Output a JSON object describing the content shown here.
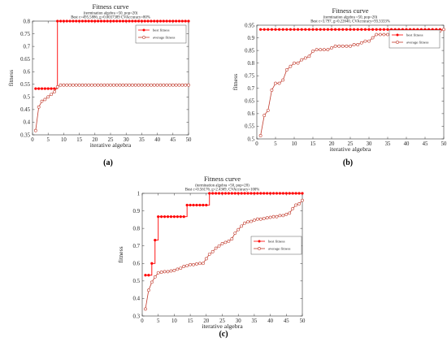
{
  "colors": {
    "best": "#ff0000",
    "average": "#c0392b",
    "axis": "#333333"
  },
  "chart_data": [
    {
      "type": "line",
      "title": "Fitness curve",
      "subtitle_lines": [
        "(termination algebra =50, pop=20)",
        "Best c=495.5886, g=0.0037389 CVAccuracy=80%"
      ],
      "xlabel": "iterative algebra",
      "ylabel": "fitness",
      "xlim": [
        0,
        50
      ],
      "ylim": [
        0.35,
        0.8
      ],
      "xticks": [
        0,
        5,
        10,
        15,
        20,
        25,
        30,
        35,
        40,
        45,
        50
      ],
      "yticks": [
        0.35,
        0.4,
        0.45,
        0.5,
        0.55,
        0.6,
        0.65,
        0.7,
        0.75,
        0.8
      ],
      "legend": "top-right",
      "caption": "(a)",
      "series": [
        {
          "name": "best fitness",
          "x": [
            1,
            2,
            3,
            4,
            5,
            6,
            7,
            8,
            9,
            10,
            11,
            12,
            13,
            14,
            15,
            16,
            17,
            18,
            19,
            20,
            21,
            22,
            23,
            24,
            25,
            26,
            27,
            28,
            29,
            30,
            31,
            32,
            33,
            34,
            35,
            36,
            37,
            38,
            39,
            40,
            41,
            42,
            43,
            44,
            45,
            46,
            47,
            48,
            49,
            50
          ],
          "values": [
            0.533,
            0.533,
            0.533,
            0.533,
            0.533,
            0.533,
            0.533,
            0.8,
            0.8,
            0.8,
            0.8,
            0.8,
            0.8,
            0.8,
            0.8,
            0.8,
            0.8,
            0.8,
            0.8,
            0.8,
            0.8,
            0.8,
            0.8,
            0.8,
            0.8,
            0.8,
            0.8,
            0.8,
            0.8,
            0.8,
            0.8,
            0.8,
            0.8,
            0.8,
            0.8,
            0.8,
            0.8,
            0.8,
            0.8,
            0.8,
            0.8,
            0.8,
            0.8,
            0.8,
            0.8,
            0.8,
            0.8,
            0.8,
            0.8,
            0.8
          ]
        },
        {
          "name": "average fitness",
          "x": [
            1,
            2,
            3,
            4,
            5,
            6,
            7,
            8,
            9,
            10,
            11,
            12,
            13,
            14,
            15,
            16,
            17,
            18,
            19,
            20,
            21,
            22,
            23,
            24,
            25,
            26,
            27,
            28,
            29,
            30,
            31,
            32,
            33,
            34,
            35,
            36,
            37,
            38,
            39,
            40,
            41,
            42,
            43,
            44,
            45,
            46,
            47,
            48,
            49,
            50
          ],
          "values": [
            0.367,
            0.46,
            0.483,
            0.49,
            0.5,
            0.51,
            0.52,
            0.54,
            0.547,
            0.547,
            0.547,
            0.547,
            0.547,
            0.547,
            0.547,
            0.547,
            0.547,
            0.547,
            0.547,
            0.547,
            0.547,
            0.547,
            0.547,
            0.547,
            0.547,
            0.547,
            0.547,
            0.547,
            0.547,
            0.547,
            0.547,
            0.547,
            0.547,
            0.547,
            0.547,
            0.547,
            0.547,
            0.547,
            0.547,
            0.547,
            0.547,
            0.547,
            0.547,
            0.547,
            0.547,
            0.547,
            0.547,
            0.547,
            0.547,
            0.547
          ]
        }
      ]
    },
    {
      "type": "line",
      "title": "Fitness curve",
      "subtitle_lines": [
        "(termination algebra =50, pop=20)",
        "Best c=3.797, g=0.22640, CVAccuracy=93.3333%"
      ],
      "xlabel": "iterative algebra",
      "ylabel": "fitness",
      "xlim": [
        0,
        50
      ],
      "ylim": [
        0.5,
        0.95
      ],
      "xticks": [
        0,
        5,
        10,
        15,
        20,
        25,
        30,
        35,
        40,
        45,
        50
      ],
      "yticks": [
        0.5,
        0.55,
        0.6,
        0.65,
        0.7,
        0.75,
        0.8,
        0.85,
        0.9,
        0.95
      ],
      "legend": "top-right",
      "caption": "(b)",
      "series": [
        {
          "name": "best fitness",
          "x": [
            1,
            2,
            3,
            4,
            5,
            6,
            7,
            8,
            9,
            10,
            11,
            12,
            13,
            14,
            15,
            16,
            17,
            18,
            19,
            20,
            21,
            22,
            23,
            24,
            25,
            26,
            27,
            28,
            29,
            30,
            31,
            32,
            33,
            34,
            35,
            36,
            37,
            38,
            39,
            40,
            41,
            42,
            43,
            44,
            45,
            46,
            47,
            48,
            49,
            50
          ],
          "values": [
            0.933,
            0.933,
            0.933,
            0.933,
            0.933,
            0.933,
            0.933,
            0.933,
            0.933,
            0.933,
            0.933,
            0.933,
            0.933,
            0.933,
            0.933,
            0.933,
            0.933,
            0.933,
            0.933,
            0.933,
            0.933,
            0.933,
            0.933,
            0.933,
            0.933,
            0.933,
            0.933,
            0.933,
            0.933,
            0.933,
            0.933,
            0.933,
            0.933,
            0.933,
            0.933,
            0.933,
            0.933,
            0.933,
            0.933,
            0.933,
            0.933,
            0.933,
            0.933,
            0.933,
            0.933,
            0.933,
            0.933,
            0.933,
            0.933,
            0.933
          ]
        },
        {
          "name": "average fitness",
          "x": [
            1,
            2,
            3,
            4,
            5,
            6,
            7,
            8,
            9,
            10,
            11,
            12,
            13,
            14,
            15,
            16,
            17,
            18,
            19,
            20,
            21,
            22,
            23,
            24,
            25,
            26,
            27,
            28,
            29,
            30,
            31,
            32,
            33,
            34,
            35,
            36,
            37,
            38,
            39,
            40,
            41,
            42,
            43,
            44,
            45,
            46,
            47,
            48,
            49,
            50
          ],
          "values": [
            0.513,
            0.593,
            0.613,
            0.693,
            0.72,
            0.72,
            0.733,
            0.773,
            0.787,
            0.8,
            0.8,
            0.813,
            0.82,
            0.827,
            0.847,
            0.853,
            0.853,
            0.853,
            0.853,
            0.86,
            0.867,
            0.867,
            0.867,
            0.867,
            0.867,
            0.873,
            0.873,
            0.88,
            0.887,
            0.887,
            0.9,
            0.913,
            0.913,
            0.913,
            0.913,
            0.913,
            0.913,
            0.913,
            0.913,
            0.913,
            0.913,
            0.913,
            0.913,
            0.913,
            0.913,
            0.913,
            0.913,
            0.92,
            0.927,
            0.933
          ]
        }
      ]
    },
    {
      "type": "line",
      "title": "Fitness curve",
      "subtitle_lines": [
        "(termination algebra =50, pop=20)",
        "Best c=0.56176, g=2.4369, CVAccuracy=100%"
      ],
      "xlabel": "iterative algebra",
      "ylabel": "fitness",
      "xlim": [
        0,
        50
      ],
      "ylim": [
        0.3,
        1
      ],
      "xticks": [
        0,
        5,
        10,
        15,
        20,
        25,
        30,
        35,
        40,
        45,
        50
      ],
      "yticks": [
        0.3,
        0.4,
        0.5,
        0.6,
        0.7,
        0.8,
        0.9,
        1
      ],
      "legend": "right",
      "caption": "(c)",
      "series": [
        {
          "name": "best fitness",
          "x": [
            1,
            2,
            3,
            4,
            5,
            6,
            7,
            8,
            9,
            10,
            11,
            12,
            13,
            14,
            15,
            16,
            17,
            18,
            19,
            20,
            21,
            22,
            23,
            24,
            25,
            26,
            27,
            28,
            29,
            30,
            31,
            32,
            33,
            34,
            35,
            36,
            37,
            38,
            39,
            40,
            41,
            42,
            43,
            44,
            45,
            46,
            47,
            48,
            49,
            50
          ],
          "values": [
            0.533,
            0.533,
            0.6,
            0.733,
            0.867,
            0.867,
            0.867,
            0.867,
            0.867,
            0.867,
            0.867,
            0.867,
            0.867,
            0.933,
            0.933,
            0.933,
            0.933,
            0.933,
            0.933,
            0.933,
            1,
            1,
            1,
            1,
            1,
            1,
            1,
            1,
            1,
            1,
            1,
            1,
            1,
            1,
            1,
            1,
            1,
            1,
            1,
            1,
            1,
            1,
            1,
            1,
            1,
            1,
            1,
            1,
            1,
            1
          ]
        },
        {
          "name": "average fitness",
          "x": [
            1,
            2,
            3,
            4,
            5,
            6,
            7,
            8,
            9,
            10,
            11,
            12,
            13,
            14,
            15,
            16,
            17,
            18,
            19,
            20,
            21,
            22,
            23,
            24,
            25,
            26,
            27,
            28,
            29,
            30,
            31,
            32,
            33,
            34,
            35,
            36,
            37,
            38,
            39,
            40,
            41,
            42,
            43,
            44,
            45,
            46,
            47,
            48,
            49,
            50
          ],
          "values": [
            0.34,
            0.447,
            0.493,
            0.523,
            0.547,
            0.55,
            0.553,
            0.553,
            0.557,
            0.56,
            0.567,
            0.573,
            0.583,
            0.587,
            0.593,
            0.593,
            0.597,
            0.6,
            0.6,
            0.627,
            0.653,
            0.667,
            0.687,
            0.7,
            0.713,
            0.72,
            0.727,
            0.74,
            0.773,
            0.793,
            0.813,
            0.83,
            0.837,
            0.84,
            0.847,
            0.853,
            0.853,
            0.857,
            0.86,
            0.863,
            0.867,
            0.867,
            0.873,
            0.873,
            0.88,
            0.887,
            0.913,
            0.933,
            0.94,
            0.96
          ]
        }
      ]
    }
  ]
}
